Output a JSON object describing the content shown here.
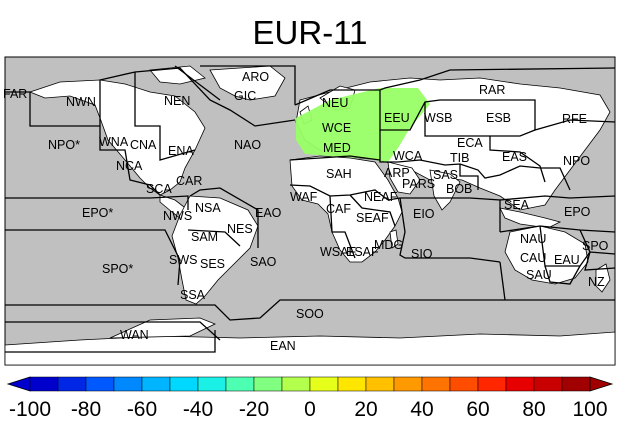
{
  "title": "EUR-11",
  "colors": {
    "ocean": "#c0c0c0",
    "land": "#ffffff",
    "domain_fill": "#99ff66",
    "region_line": "#000000"
  },
  "regions": [
    "ARO",
    "GIC",
    "NEN",
    "FAR",
    "NWN",
    "NEU",
    "RAR",
    "WSB",
    "ESB",
    "RFE",
    "EEU",
    "WCE",
    "NAO",
    "NPO*",
    "WNA",
    "CNA",
    "ENA",
    "MED",
    "ECA",
    "EAS",
    "NPO",
    "WCA",
    "TIB",
    "NCA",
    "SCA",
    "CAR",
    "SAH",
    "ARP",
    "SAS",
    "PARS",
    "BOB",
    "WAF",
    "NEAF",
    "CAF",
    "SEAF",
    "EIO",
    "SEA",
    "EPO",
    "EPO*",
    "NWS",
    "NSA",
    "NES",
    "EAO",
    "SAM",
    "WSAF",
    "ESAF",
    "MDG",
    "SIO",
    "NAU",
    "SPO",
    "CAU",
    "EAU",
    "SAU",
    "NZ",
    "SWS",
    "SES",
    "SAO",
    "SPO*",
    "SSA",
    "SOO",
    "WAN",
    "EAN"
  ],
  "colorbar": {
    "ticks": [
      "-100",
      "-80",
      "-60",
      "-40",
      "-20",
      "0",
      "20",
      "40",
      "60",
      "80",
      "100"
    ],
    "colors": [
      "#0000cc",
      "#0026e6",
      "#0059ff",
      "#0088ff",
      "#00b4ff",
      "#00d9ff",
      "#1af0e6",
      "#4dffb3",
      "#80ff80",
      "#b3ff4d",
      "#e6ff1a",
      "#ffe600",
      "#ffc000",
      "#ff9900",
      "#ff7300",
      "#ff4d00",
      "#ff2600",
      "#e60000",
      "#c80000",
      "#a00000"
    ]
  }
}
